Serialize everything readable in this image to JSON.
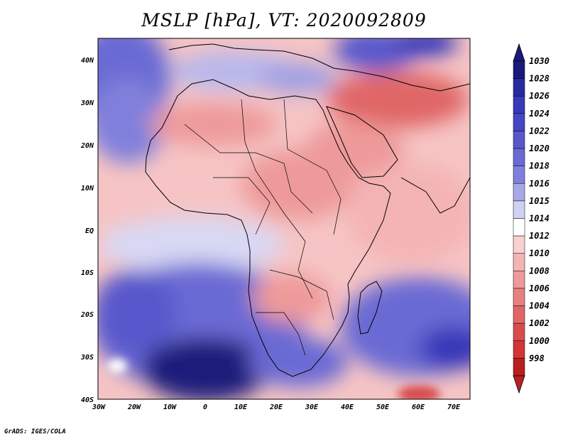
{
  "title": "MSLP [hPa], VT: 2020092809",
  "credit": "GrADS: IGES/COLA",
  "map": {
    "lat_labels": [
      "40N",
      "30N",
      "20N",
      "10N",
      "EQ",
      "10S",
      "20S",
      "30S",
      "40S"
    ],
    "lon_labels": [
      "30W",
      "20W",
      "10W",
      "0",
      "10E",
      "20E",
      "30E",
      "40E",
      "50E",
      "60E",
      "70E"
    ]
  },
  "colorbar": {
    "levels": [
      "1030",
      "1028",
      "1026",
      "1024",
      "1022",
      "1020",
      "1018",
      "1016",
      "1015",
      "1014",
      "1012",
      "1010",
      "1008",
      "1006",
      "1004",
      "1002",
      "1000",
      "998"
    ],
    "colors": [
      "#1a1a7a",
      "#2a2aa0",
      "#3838b8",
      "#4646c4",
      "#5858cc",
      "#6a6ad4",
      "#8080dc",
      "#a8a8e8",
      "#d0d0f2",
      "#ffffff",
      "#f8d0d0",
      "#f4b4b4",
      "#ee9a9a",
      "#e88080",
      "#e06666",
      "#d84c4c",
      "#d03636",
      "#b82020"
    ]
  }
}
